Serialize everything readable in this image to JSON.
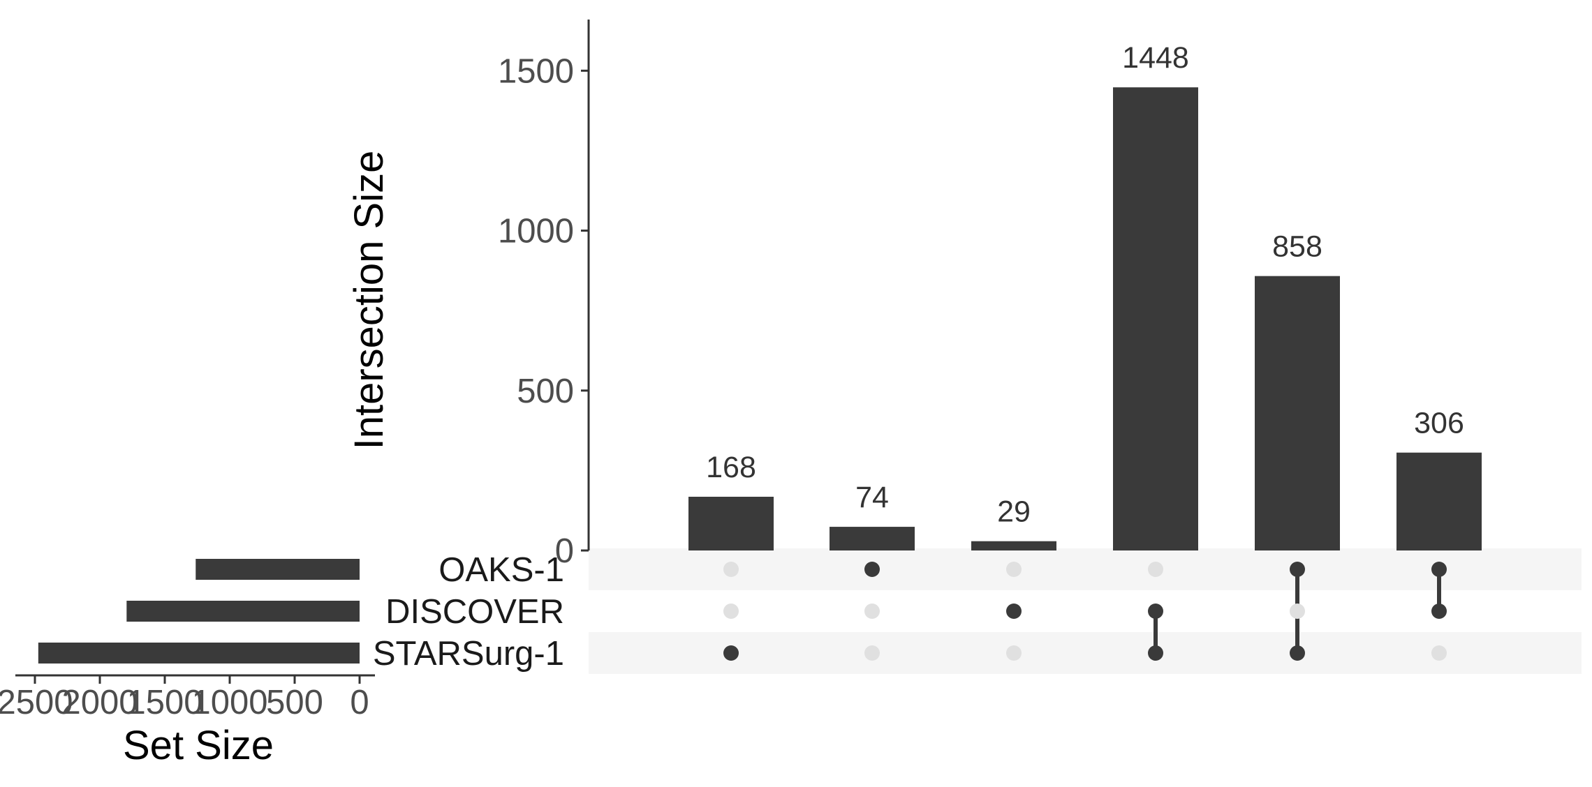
{
  "chart_data": {
    "type": "upset",
    "bar_color": "#3a3a3a",
    "inactive_dot_color": "#e0e0e0",
    "stripe_color": "#f5f5f5",
    "intersection_axis": {
      "label": "Intersection Size",
      "ylim": [
        0,
        1660
      ],
      "ticks": [
        "0",
        "500",
        "1000",
        "1500"
      ]
    },
    "set_size_axis": {
      "label": "Set Size",
      "xlim": [
        0,
        2550
      ],
      "ticks": [
        "2500",
        "2000",
        "1500",
        "1000",
        "500",
        "0"
      ]
    },
    "sets": [
      {
        "name": "OAKS-1",
        "size": 1262
      },
      {
        "name": "DISCOVER",
        "size": 1794
      },
      {
        "name": "STARSurg-1",
        "size": 2474
      }
    ],
    "intersections": [
      {
        "label": "168",
        "value": 168,
        "members": [
          "STARSurg-1"
        ]
      },
      {
        "label": "74",
        "value": 74,
        "members": [
          "OAKS-1"
        ]
      },
      {
        "label": "29",
        "value": 29,
        "members": [
          "DISCOVER"
        ]
      },
      {
        "label": "1448",
        "value": 1448,
        "members": [
          "DISCOVER",
          "STARSurg-1"
        ]
      },
      {
        "label": "858",
        "value": 858,
        "members": [
          "OAKS-1",
          "STARSurg-1"
        ]
      },
      {
        "label": "306",
        "value": 306,
        "members": [
          "OAKS-1",
          "DISCOVER"
        ]
      }
    ]
  }
}
